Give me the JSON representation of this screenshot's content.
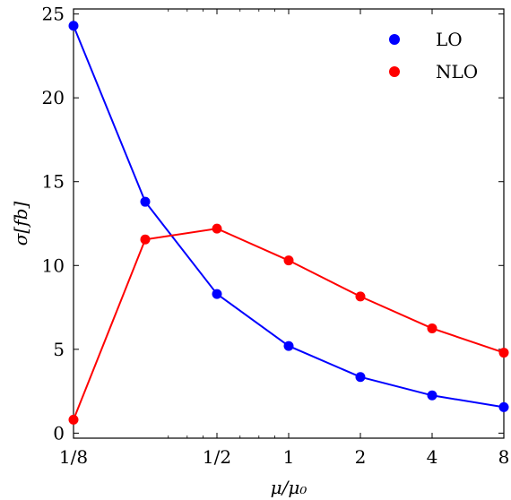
{
  "chart_data": {
    "type": "line",
    "title": "",
    "xlabel": "μ/μ₀",
    "ylabel": "σ[fb]",
    "x_scale": "log2",
    "x": [
      0.125,
      0.25,
      0.5,
      1,
      2,
      4,
      8
    ],
    "xticks": [
      {
        "value": 0.125,
        "label": "1/8"
      },
      {
        "value": 0.5,
        "label": "1/2"
      },
      {
        "value": 1,
        "label": "1"
      },
      {
        "value": 2,
        "label": "2"
      },
      {
        "value": 4,
        "label": "4"
      },
      {
        "value": 8,
        "label": "8"
      }
    ],
    "yticks": [
      0,
      5,
      10,
      15,
      20,
      25
    ],
    "xlim": [
      0.125,
      8
    ],
    "ylim": [
      -0.3,
      25.3
    ],
    "grid": false,
    "legend_position": "top-right",
    "series": [
      {
        "name": "LO",
        "color": "#0000ff",
        "values": [
          24.3,
          13.8,
          8.3,
          5.2,
          3.35,
          2.25,
          1.55
        ]
      },
      {
        "name": "NLO",
        "color": "#ff0000",
        "values": [
          0.8,
          11.55,
          12.2,
          10.3,
          8.15,
          6.25,
          4.8
        ]
      }
    ]
  }
}
